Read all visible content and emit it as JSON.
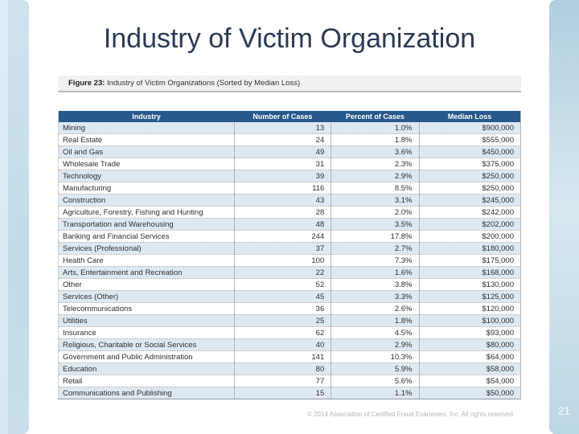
{
  "slide": {
    "title": "Industry of Victim Organization",
    "page_number": "21",
    "footer_copyright": "© 2014 Association of Certified Fraud Examiners, Inc. All rights reserved."
  },
  "figure": {
    "caption_label": "Figure 23:",
    "caption_text": " Industry of Victim Organizations (Sorted by Median Loss)",
    "table": {
      "columns": [
        "Industry",
        "Number of Cases",
        "Percent of Cases",
        "Median Loss"
      ],
      "rows": [
        [
          "Mining",
          "13",
          "1.0%",
          "$900,000"
        ],
        [
          "Real Estate",
          "24",
          "1.8%",
          "$555,000"
        ],
        [
          "Oil and Gas",
          "49",
          "3.6%",
          "$450,000"
        ],
        [
          "Wholesale Trade",
          "31",
          "2.3%",
          "$375,000"
        ],
        [
          "Technology",
          "39",
          "2.9%",
          "$250,000"
        ],
        [
          "Manufacturing",
          "116",
          "8.5%",
          "$250,000"
        ],
        [
          "Construction",
          "43",
          "3.1%",
          "$245,000"
        ],
        [
          "Agriculture, Forestry, Fishing and Hunting",
          "28",
          "2.0%",
          "$242,000"
        ],
        [
          "Transportation and Warehousing",
          "48",
          "3.5%",
          "$202,000"
        ],
        [
          "Banking and Financial Services",
          "244",
          "17.8%",
          "$200,000"
        ],
        [
          "Services (Professional)",
          "37",
          "2.7%",
          "$180,000"
        ],
        [
          "Health Care",
          "100",
          "7.3%",
          "$175,000"
        ],
        [
          "Arts, Entertainment and Recreation",
          "22",
          "1.6%",
          "$168,000"
        ],
        [
          "Other",
          "52",
          "3.8%",
          "$130,000"
        ],
        [
          "Services (Other)",
          "45",
          "3.3%",
          "$125,000"
        ],
        [
          "Telecommunications",
          "36",
          "2.6%",
          "$120,000"
        ],
        [
          "Utilities",
          "25",
          "1.8%",
          "$100,000"
        ],
        [
          "Insurance",
          "62",
          "4.5%",
          "$93,000"
        ],
        [
          "Religious, Charitable or Social Services",
          "40",
          "2.9%",
          "$80,000"
        ],
        [
          "Government and Public Administration",
          "141",
          "10.3%",
          "$64,000"
        ],
        [
          "Education",
          "80",
          "5.9%",
          "$58,000"
        ],
        [
          "Retail",
          "77",
          "5.6%",
          "$54,000"
        ],
        [
          "Communications and Publishing",
          "15",
          "1.1%",
          "$50,000"
        ]
      ]
    }
  },
  "colors": {
    "accent_strip": "#c2dbe9",
    "table_header": "#27598b",
    "row_stripe": "#dde8f1",
    "title_text": "#2b3a52",
    "caption_bg": "#f1f1f1"
  }
}
